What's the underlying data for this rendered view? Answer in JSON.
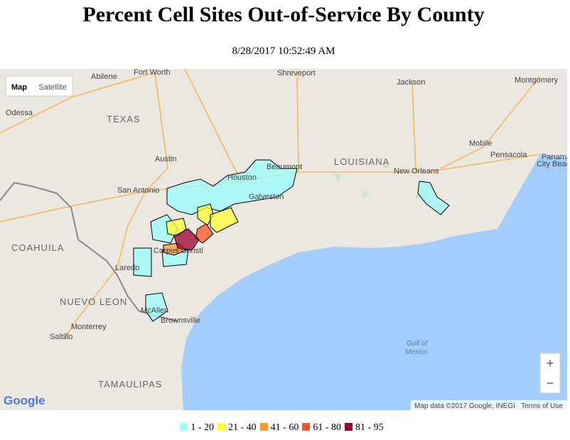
{
  "header": {
    "title": "Percent Cell Sites Out-of-Service By County",
    "timestamp": "8/28/2017 10:52:49 AM"
  },
  "map": {
    "controls": {
      "map": "Map",
      "satellite": "Satellite",
      "zoom_in": "+",
      "zoom_out": "−"
    },
    "labels": [
      "Abilene",
      "Fort Worth",
      "Shreveport",
      "Jackson",
      "Montgomery",
      "Odessa",
      "TEXAS",
      "Austin",
      "LOUISIANA",
      "Mobile",
      "Pensacola",
      "Panama",
      "City Beach",
      "San Antonio",
      "Houston",
      "Beaumont",
      "New Orleans",
      "Galveston",
      "COAHUILA",
      "Corpus Christi",
      "Laredo",
      "NUEVO LEON",
      "McAllen",
      "Brownsville",
      "Monterrey",
      "Saltillo",
      "Gulf of",
      "Mexico",
      "TAMAULIPAS"
    ],
    "logo": "Google",
    "attribution": "Map data ©2017 Google, INEGI",
    "terms": "Terms of Use"
  },
  "legend": {
    "items": [
      {
        "label": "1 - 20",
        "color": "#99ffff"
      },
      {
        "label": "21 - 40",
        "color": "#ffff33"
      },
      {
        "label": "41 - 60",
        "color": "#ff9933"
      },
      {
        "label": "61 - 80",
        "color": "#ff5522"
      },
      {
        "label": "81 - 95",
        "color": "#990033"
      }
    ]
  }
}
